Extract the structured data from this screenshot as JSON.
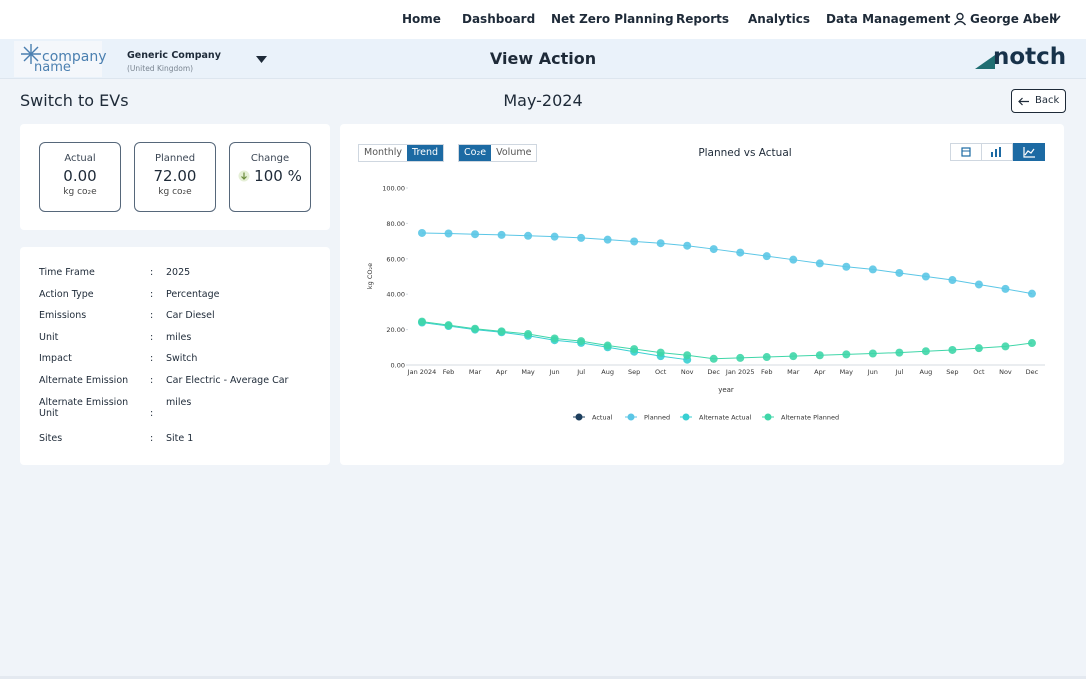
{
  "nav": {
    "items": [
      "Home",
      "Dashboard",
      "Net Zero Planning",
      "Reports",
      "Analytics",
      "Data Management"
    ],
    "user": "George Abell"
  },
  "header": {
    "logo_line1": "company",
    "logo_line2": "name",
    "company": "Generic Company",
    "country": "(United Kingdom)",
    "title": "View Action",
    "brand": "notch"
  },
  "page": {
    "action": "Switch to EVs",
    "period": "May-2024",
    "back": "Back"
  },
  "kpis": [
    {
      "label": "Actual",
      "value": "0.00",
      "unit": "kg co₂e"
    },
    {
      "label": "Planned",
      "value": "72.00",
      "unit": "kg co₂e"
    },
    {
      "label": "Change",
      "value": "100 %"
    }
  ],
  "details": [
    {
      "label": "Time Frame",
      "value": "2025"
    },
    {
      "label": "Action Type",
      "value": "Percentage"
    },
    {
      "label": "Emissions",
      "value": "Car Diesel"
    },
    {
      "label": "Unit",
      "value": "miles"
    },
    {
      "label": "Impact",
      "value": "Switch"
    },
    {
      "label": "Alternate Emission",
      "value": "Car Electric - Average Car"
    },
    {
      "label": "Alternate Emission Unit",
      "value": "miles"
    },
    {
      "label": "Sites",
      "value": "Site 1"
    }
  ],
  "toggles": {
    "view": [
      "Monthly",
      "Trend"
    ],
    "metric": [
      "Co₂e",
      "Volume"
    ]
  },
  "chart_data": {
    "type": "line",
    "title": "Planned vs Actual",
    "x_label": "year",
    "y_label": "kg CO₂e",
    "categories": [
      "Jan 2024",
      "Feb",
      "Mar",
      "Apr",
      "May",
      "Jun",
      "Jul",
      "Aug",
      "Sep",
      "Oct",
      "Nov",
      "Dec",
      "Jan 2025",
      "Feb",
      "Mar",
      "Apr",
      "May",
      "Jun",
      "Jul",
      "Aug",
      "Sep",
      "Oct",
      "Nov",
      "Dec"
    ],
    "ylim": [
      0,
      100
    ],
    "yticks": [
      {
        "value": 0,
        "label": "0.00"
      },
      {
        "value": 20,
        "label": "20.00"
      },
      {
        "value": 40,
        "label": "40.00"
      },
      {
        "value": 60,
        "label": "60.00"
      },
      {
        "value": 80,
        "label": "80.00"
      },
      {
        "value": 100,
        "label": "100.00"
      }
    ],
    "grid": false,
    "legend": "bottom",
    "series": [
      {
        "name": "Actual",
        "color": "#1d3f5e",
        "values": [
          null,
          null,
          null,
          null,
          null,
          null,
          null,
          null,
          null,
          null,
          null,
          null,
          null,
          null,
          null,
          null,
          null,
          null,
          null,
          null,
          null,
          null,
          null,
          null
        ]
      },
      {
        "name": "Planned",
        "color": "#5bc6e6",
        "values": [
          74.6,
          74.3,
          73.9,
          73.5,
          73.0,
          72.5,
          71.8,
          70.8,
          69.8,
          68.8,
          67.4,
          65.5,
          63.5,
          61.5,
          59.5,
          57.4,
          55.5,
          54.0,
          52.0,
          50.0,
          48.0,
          45.5,
          43.0,
          40.3
        ]
      },
      {
        "name": "Alternate Actual",
        "color": "#38cfd2",
        "values": [
          24.0,
          22.0,
          20.0,
          18.5,
          16.5,
          14.0,
          12.5,
          10.0,
          7.5,
          5.0,
          3.0,
          null,
          null,
          null,
          null,
          null,
          null,
          null,
          null,
          null,
          null,
          null,
          null,
          null
        ]
      },
      {
        "name": "Alternate Planned",
        "color": "#3fd6a8",
        "values": [
          24.5,
          22.5,
          20.5,
          19.0,
          17.5,
          15.0,
          13.5,
          11.0,
          9.0,
          7.0,
          5.5,
          3.5,
          4.0,
          4.5,
          5.0,
          5.5,
          6.0,
          6.5,
          7.0,
          7.8,
          8.5,
          9.5,
          10.5,
          12.4
        ]
      }
    ]
  }
}
